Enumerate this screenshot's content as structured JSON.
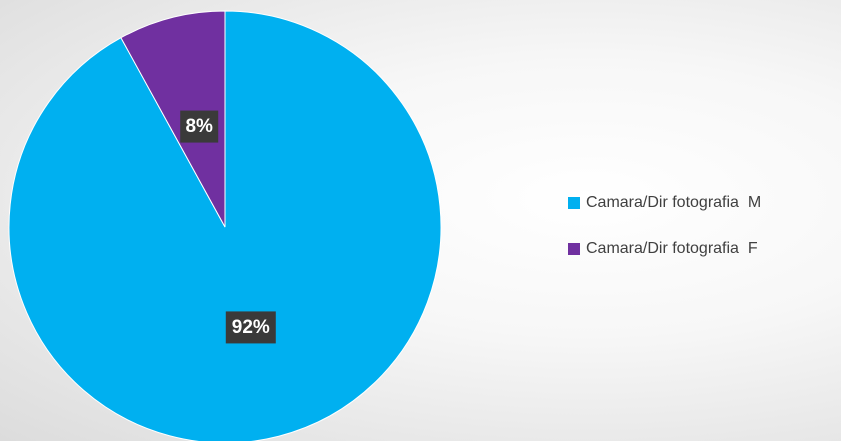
{
  "chart_data": {
    "type": "pie",
    "title": "",
    "slices": [
      {
        "name": "Camara/Dir fotografia  M",
        "value": 92,
        "label": "92%",
        "color": "#00b0f0"
      },
      {
        "name": "Camara/Dir fotografia  F",
        "value": 8,
        "label": "8%",
        "color": "#7030a0"
      }
    ],
    "legend_position": "right",
    "label_style": "percentage"
  }
}
